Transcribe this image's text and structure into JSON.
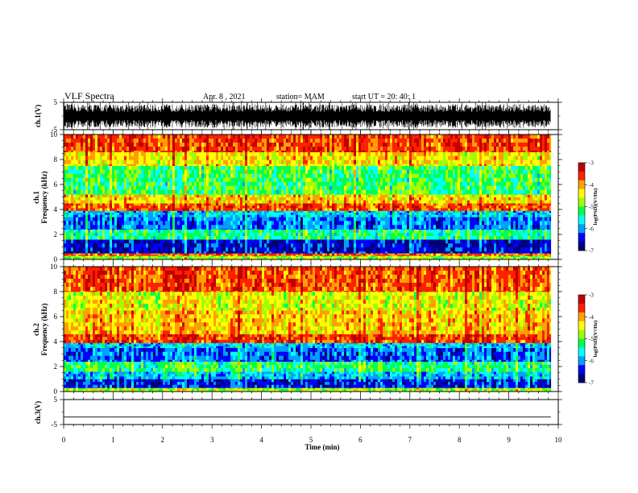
{
  "header": {
    "title": "VLF Spectra",
    "date": "Apr. 8 , 2021",
    "station": "station= MAM",
    "start": "start UT = 20: 40: 1"
  },
  "colors": {
    "spectrum": [
      "#00007a",
      "#0000ff",
      "#00a0ff",
      "#00ffff",
      "#00ff50",
      "#a0ff00",
      "#ffff00",
      "#ffa000",
      "#ff2000",
      "#c00000"
    ],
    "trace": "#000000"
  },
  "chart_data": {
    "type": "heatmap",
    "xlabel": "Time (min)",
    "xlim": [
      0,
      10
    ],
    "x_ticks": [
      "0",
      "1",
      "2",
      "3",
      "4",
      "5",
      "6",
      "7",
      "8",
      "9",
      "10"
    ],
    "waveform_ch1": {
      "ylabel": "ch.1(V)",
      "ylim": [
        -5,
        5
      ],
      "y_ticks": [
        "5",
        "-5"
      ]
    },
    "spectrogram_ch1": {
      "ylabel_line1": "ch.1",
      "ylabel_line2": "Frequency (kHz)",
      "ylim": [
        0,
        10
      ],
      "y_ticks": [
        "0",
        "2",
        "4",
        "6",
        "8",
        "10"
      ],
      "data_end_min": 9.85,
      "bands": [
        {
          "f_lo": 0.0,
          "f_hi": 0.3,
          "level": 0.55
        },
        {
          "f_lo": 0.3,
          "f_hi": 0.5,
          "level": 0.8
        },
        {
          "f_lo": 0.5,
          "f_hi": 1.6,
          "level": 0.12
        },
        {
          "f_lo": 1.6,
          "f_hi": 2.4,
          "level": 0.42
        },
        {
          "f_lo": 2.4,
          "f_hi": 3.4,
          "level": 0.22
        },
        {
          "f_lo": 3.4,
          "f_hi": 3.9,
          "level": 0.3
        },
        {
          "f_lo": 3.9,
          "f_hi": 4.5,
          "level": 0.82
        },
        {
          "f_lo": 4.5,
          "f_hi": 5.2,
          "level": 0.68
        },
        {
          "f_lo": 5.2,
          "f_hi": 7.5,
          "level": 0.46
        },
        {
          "f_lo": 7.5,
          "f_hi": 8.6,
          "level": 0.66
        },
        {
          "f_lo": 8.6,
          "f_hi": 10.0,
          "level": 0.84
        }
      ]
    },
    "spectrogram_ch2": {
      "ylabel_line1": "ch.2",
      "ylabel_line2": "Frequency (kHz)",
      "ylim": [
        0,
        10
      ],
      "y_ticks": [
        "0",
        "2",
        "4",
        "6",
        "8",
        "10"
      ],
      "data_end_min": 9.85,
      "bands": [
        {
          "f_lo": 0.0,
          "f_hi": 0.3,
          "level": 0.55
        },
        {
          "f_lo": 0.3,
          "f_hi": 1.0,
          "level": 0.14
        },
        {
          "f_lo": 1.0,
          "f_hi": 1.6,
          "level": 0.3
        },
        {
          "f_lo": 1.6,
          "f_hi": 2.4,
          "level": 0.44
        },
        {
          "f_lo": 2.4,
          "f_hi": 3.5,
          "level": 0.2
        },
        {
          "f_lo": 3.5,
          "f_hi": 3.9,
          "level": 0.3
        },
        {
          "f_lo": 3.9,
          "f_hi": 4.6,
          "level": 0.84
        },
        {
          "f_lo": 4.6,
          "f_hi": 6.5,
          "level": 0.7
        },
        {
          "f_lo": 6.5,
          "f_hi": 8.0,
          "level": 0.62
        },
        {
          "f_lo": 8.0,
          "f_hi": 10.0,
          "level": 0.82
        }
      ]
    },
    "waveform_ch3": {
      "ylabel": "ch.3(V)",
      "ylim": [
        -5,
        5
      ],
      "y_ticks": [
        "5",
        "-5"
      ],
      "baseline_v": -2
    },
    "colorbar": {
      "title": "log(PSD)(V²/Hz)",
      "range": [
        -7,
        -3
      ],
      "ticks": [
        "-3",
        "-4",
        "-5",
        "-6",
        "-7"
      ]
    }
  }
}
